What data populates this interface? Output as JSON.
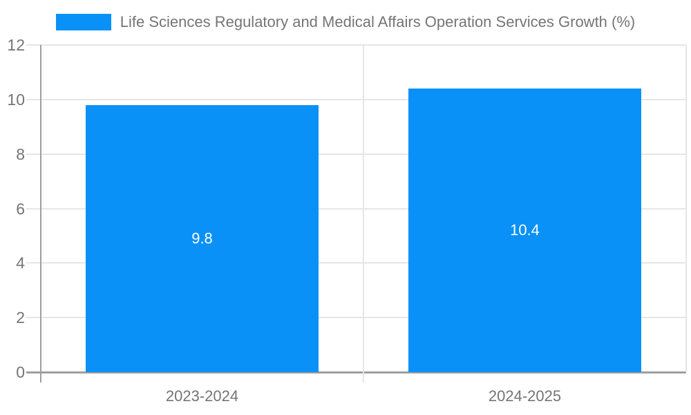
{
  "chart_data": {
    "type": "bar",
    "title": "Life Sciences Regulatory and Medical Affairs Operation Services Growth (%)",
    "categories": [
      "2023-2024",
      "2024-2025"
    ],
    "values": [
      9.8,
      10.4
    ],
    "value_labels": [
      "9.8",
      "10.4"
    ],
    "yticks": [
      0,
      2,
      4,
      6,
      8,
      10,
      12
    ],
    "ylim": [
      0,
      12
    ],
    "xlabel": "",
    "ylabel": "",
    "legend_position": "top",
    "grid": true,
    "colors": {
      "bar": "#0991f8",
      "grid": "#e6e6e6",
      "axis": "#9e9e9e",
      "tick_label": "#757575",
      "value_label": "#ffffff",
      "background": "#ffffff"
    }
  }
}
